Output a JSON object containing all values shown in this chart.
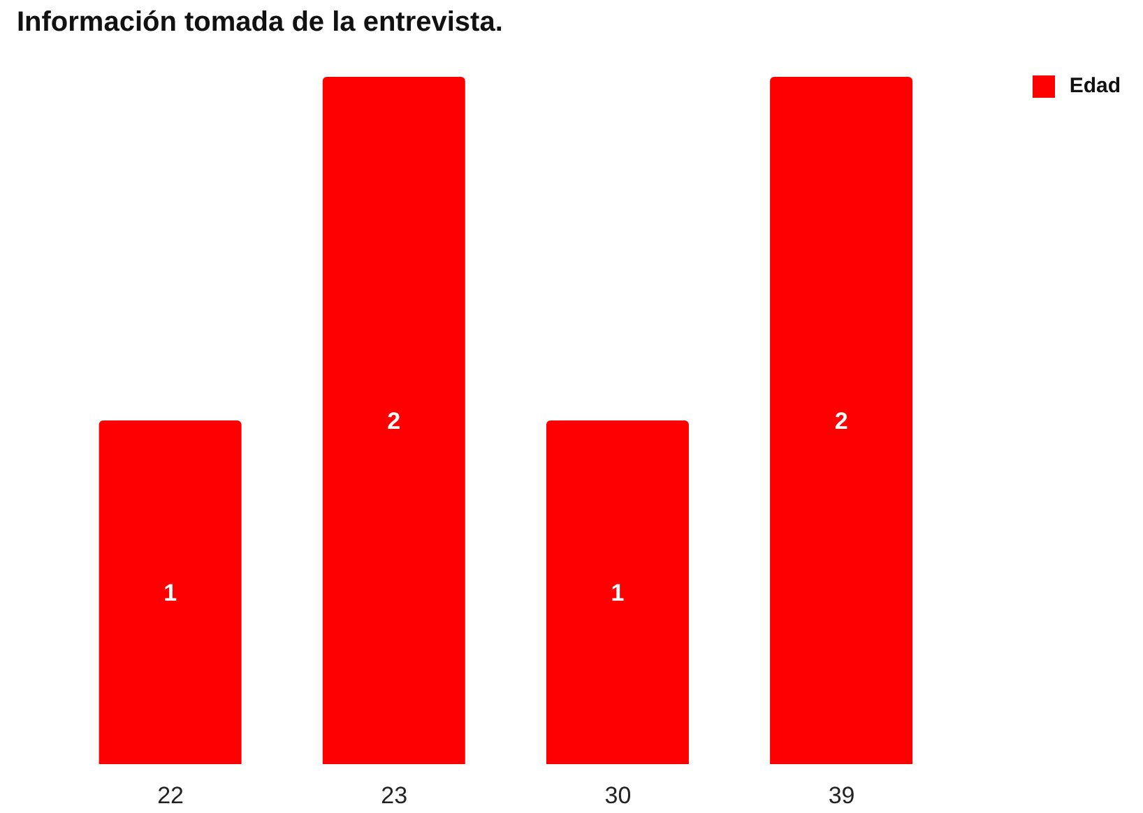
{
  "chart_data": {
    "type": "bar",
    "title": "Información tomada de la entrevista.",
    "categories": [
      "22",
      "23",
      "30",
      "39"
    ],
    "series": [
      {
        "name": "Edad",
        "color": "#ff0000",
        "values": [
          1,
          2,
          1,
          2
        ]
      }
    ],
    "data_labels": true,
    "legend": "top right"
  }
}
